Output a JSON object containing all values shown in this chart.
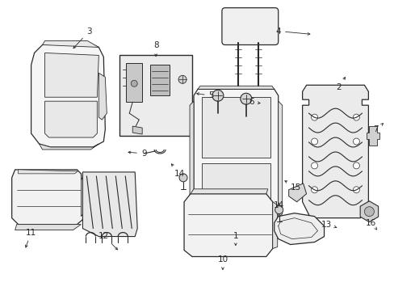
{
  "bg_color": "#ffffff",
  "line_color": "#2a2a2a",
  "figsize": [
    4.89,
    3.6
  ],
  "dpi": 100,
  "label_fs": 7.5
}
